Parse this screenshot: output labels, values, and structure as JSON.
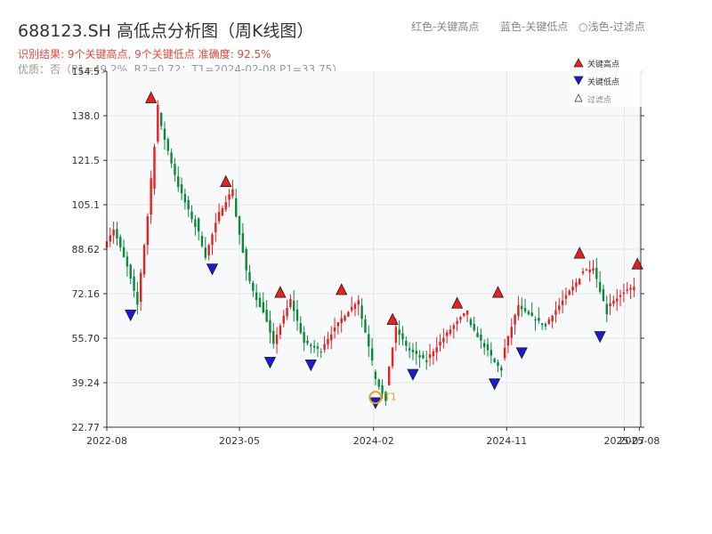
{
  "header": {
    "title": "688123.SH 高低点分析图（周K线图）",
    "legend_red": "红色-关键高点",
    "legend_blue": "蓝色-关键低点",
    "legend_light": "○浅色-过滤点",
    "status": "识别结果: 9个关键高点, 9个关键低点  准确度: 92.5%",
    "quality": "优质：否（P1=49.2%, R2=0.72；T1=2024-02-08 P1=33.75）"
  },
  "colors": {
    "up": "#e8201f",
    "down": "#0c8a3a",
    "high_marker": "#e8201f",
    "low_marker": "#1a1ad8",
    "t1": "#f39c12",
    "plot_bg": "#f7f9fb",
    "grid": "#e2e6ea"
  },
  "chart_data": {
    "type": "candlestick",
    "title": "688123.SH 高低点分析图（周K线图）",
    "y_ticks": [
      "22.77",
      "39.24",
      "55.70",
      "72.16",
      "88.62",
      "105.1",
      "121.5",
      "138.0",
      "154.5"
    ],
    "y_range": [
      22.77,
      154.5
    ],
    "x_ticks": [
      "2022-08",
      "2023-05",
      "2024-02",
      "2024-11",
      "2025-08",
      "2025-07"
    ],
    "x_range": [
      "2022-08-01",
      "2025-08-04"
    ],
    "grid": true,
    "legend": {
      "position": "top-right",
      "entries": [
        "关键高点",
        "关键低点",
        "过滤点"
      ]
    },
    "anchors": [
      [
        "2022-08-01",
        90,
        96
      ],
      [
        "2022-08-22",
        96,
        82
      ],
      [
        "2022-09-19",
        82,
        68
      ],
      [
        "2022-10-10",
        70,
        101
      ],
      [
        "2022-10-31",
        101,
        142
      ],
      [
        "2022-11-21",
        138,
        112
      ],
      [
        "2023-01-02",
        112,
        97
      ],
      [
        "2023-02-06",
        99,
        86
      ],
      [
        "2023-02-27",
        86,
        102
      ],
      [
        "2023-03-27",
        102,
        111
      ],
      [
        "2023-04-24",
        108,
        80
      ],
      [
        "2023-05-22",
        80,
        67
      ],
      [
        "2023-06-19",
        70,
        53
      ],
      [
        "2023-07-17",
        54,
        70
      ],
      [
        "2023-08-21",
        70,
        54
      ],
      [
        "2023-09-18",
        54,
        51
      ],
      [
        "2023-10-23",
        52,
        63
      ],
      [
        "2023-12-04",
        63,
        70
      ],
      [
        "2024-01-08",
        68,
        48
      ],
      [
        "2024-02-05",
        44,
        32
      ],
      [
        "2024-03-04",
        39,
        59
      ],
      [
        "2024-03-25",
        59,
        53
      ],
      [
        "2024-04-15",
        52,
        47
      ],
      [
        "2024-05-27",
        48,
        59
      ],
      [
        "2024-07-15",
        59,
        66
      ],
      [
        "2024-08-19",
        62,
        49
      ],
      [
        "2024-10-07",
        48,
        44
      ],
      [
        "2024-10-28",
        48,
        68
      ],
      [
        "2024-12-02",
        67,
        60
      ],
      [
        "2025-01-27",
        61,
        78
      ],
      [
        "2025-04-07",
        80,
        82
      ],
      [
        "2025-05-05",
        82,
        65
      ],
      [
        "2025-06-02",
        68,
        75
      ],
      [
        "2025-07-28",
        78,
        74
      ]
    ],
    "key_highs": [
      {
        "date": "2022-10-31",
        "price": 142.5
      },
      {
        "date": "2023-04-03",
        "price": 111.5
      },
      {
        "date": "2023-07-24",
        "price": 70.5
      },
      {
        "date": "2023-11-27",
        "price": 71.5
      },
      {
        "date": "2024-03-11",
        "price": 60.5
      },
      {
        "date": "2024-07-22",
        "price": 66.5
      },
      {
        "date": "2024-10-14",
        "price": 70.5
      },
      {
        "date": "2025-03-31",
        "price": 85.0
      },
      {
        "date": "2025-07-28",
        "price": 81.0
      }
    ],
    "key_lows": [
      {
        "date": "2022-09-19",
        "price": 66.5
      },
      {
        "date": "2023-03-06",
        "price": 83.5
      },
      {
        "date": "2023-07-03",
        "price": 49.0
      },
      {
        "date": "2023-09-25",
        "price": 48.0
      },
      {
        "date": "2024-02-05",
        "price": 34.0
      },
      {
        "date": "2024-04-22",
        "price": 44.5
      },
      {
        "date": "2024-10-07",
        "price": 41.0
      },
      {
        "date": "2024-12-02",
        "price": 52.5
      },
      {
        "date": "2025-05-12",
        "price": 58.5
      }
    ],
    "t1": {
      "label": "T1",
      "date": "2024-02-05",
      "price": 33.75
    }
  }
}
